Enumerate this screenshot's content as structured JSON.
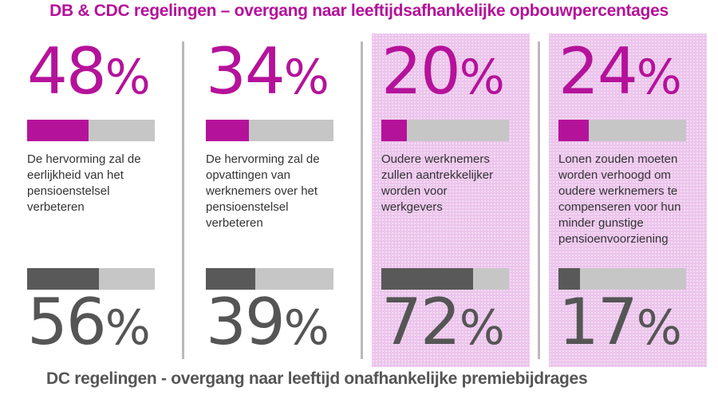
{
  "title_top": "DB & CDC regelingen – overgang naar leeftijdsafhankelijke opbouwpercentages",
  "title_bottom": "DC regelingen - overgang naar leeftijd onafhankelijke premiebijdrages",
  "colors": {
    "accent": "#b5129a",
    "dark": "#595959",
    "track": "#c6c6c6",
    "shade": "#ecc4ec"
  },
  "chart_data": {
    "type": "bar",
    "categories": [
      "De hervorming zal de eerlijkheid van het pensioenstelsel verbeteren",
      "De hervorming zal de opvattingen van werknemers over het pensioenstelsel verbeteren",
      "Oudere werknemers zullen aantrekkelijker worden voor werkgevers",
      "Lonen zouden moeten worden verhoogd om oudere werknemers te compenseren voor hun minder gunstige pensioenvoorziening"
    ],
    "series": [
      {
        "name": "DB & CDC regelingen – overgang naar leeftijdsafhankelijke opbouwpercentages",
        "values": [
          48,
          34,
          20,
          24
        ]
      },
      {
        "name": "DC regelingen - overgang naar leeftijd onafhankelijke premiebijdrages",
        "values": [
          56,
          39,
          72,
          17
        ]
      }
    ],
    "ylim": [
      0,
      100
    ],
    "unit": "%"
  },
  "panels": [
    {
      "top_num": "48",
      "top_sym": "%",
      "bottom_num": "56",
      "bottom_sym": "%",
      "shaded": false,
      "desc": "De hervorming zal de eerlijkheid van het pensioenstelsel verbeteren"
    },
    {
      "top_num": "34",
      "top_sym": "%",
      "bottom_num": "39",
      "bottom_sym": "%",
      "shaded": false,
      "desc": "De hervorming zal de opvattingen van werknemers over het pensioenstelsel verbeteren"
    },
    {
      "top_num": "20",
      "top_sym": "%",
      "bottom_num": "72",
      "bottom_sym": "%",
      "shaded": true,
      "desc": "Oudere werknemers zullen aantrekkelijker worden voor werkgevers"
    },
    {
      "top_num": "24",
      "top_sym": "%",
      "bottom_num": "17",
      "bottom_sym": "%",
      "shaded": true,
      "desc": "Lonen zouden moeten worden verhoogd om oudere werknemers te compenseren voor hun minder gunstige pensioenvoorziening"
    }
  ]
}
